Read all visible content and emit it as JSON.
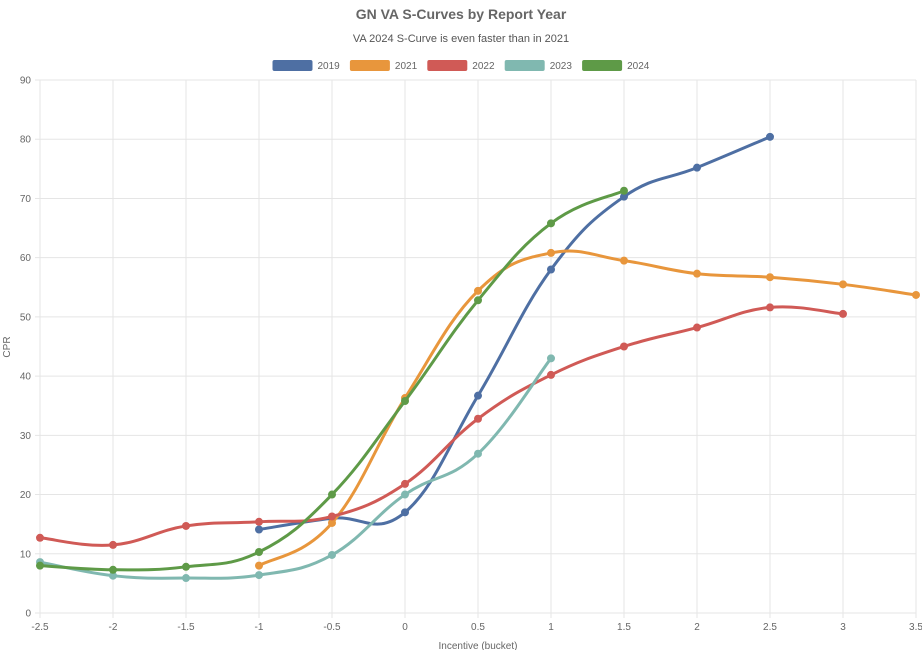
{
  "chart_data": {
    "type": "line",
    "title": "GN VA S-Curves by Report Year",
    "subtitle": "VA 2024 S-Curve is even faster than in 2021",
    "xlabel": "Incentive (bucket)",
    "ylabel": "CPR",
    "xlim": [
      -2.5,
      3.5
    ],
    "ylim": [
      0,
      90
    ],
    "x_ticks": [
      "-2.5",
      "-2",
      "-1.5",
      "-1",
      "-0.5",
      "0",
      "0.5",
      "1",
      "1.5",
      "2",
      "2.5",
      "3",
      "3.5"
    ],
    "y_ticks": [
      "0",
      "10",
      "20",
      "30",
      "40",
      "50",
      "60",
      "70",
      "80",
      "90"
    ],
    "grid": true,
    "legend_position": "top",
    "series": [
      {
        "name": "2019",
        "color": "#4e6fa3",
        "points": [
          [
            -1,
            14.1
          ],
          [
            -0.5,
            16.0
          ],
          [
            0,
            17.0
          ],
          [
            0.5,
            36.7
          ],
          [
            1,
            58.0
          ],
          [
            1.5,
            70.3
          ],
          [
            2,
            75.2
          ],
          [
            2.5,
            80.4
          ]
        ]
      },
      {
        "name": "2021",
        "color": "#e8963c",
        "points": [
          [
            -1,
            8.0
          ],
          [
            -0.5,
            15.2
          ],
          [
            0,
            36.3
          ],
          [
            0.5,
            54.4
          ],
          [
            1,
            60.8
          ],
          [
            1.5,
            59.5
          ],
          [
            2,
            57.3
          ],
          [
            2.5,
            56.7
          ],
          [
            3,
            55.5
          ],
          [
            3.5,
            53.7
          ]
        ]
      },
      {
        "name": "2022",
        "color": "#d05a56",
        "points": [
          [
            -2.5,
            12.7
          ],
          [
            -2,
            11.5
          ],
          [
            -1.5,
            14.7
          ],
          [
            -1,
            15.4
          ],
          [
            -0.5,
            16.3
          ],
          [
            0,
            21.8
          ],
          [
            0.5,
            32.8
          ],
          [
            1,
            40.2
          ],
          [
            1.5,
            45.0
          ],
          [
            2,
            48.2
          ],
          [
            2.5,
            51.6
          ],
          [
            3,
            50.5
          ]
        ]
      },
      {
        "name": "2023",
        "color": "#80b8b0",
        "points": [
          [
            -2.5,
            8.6
          ],
          [
            -2,
            6.3
          ],
          [
            -1.5,
            5.9
          ],
          [
            -1,
            6.4
          ],
          [
            -0.5,
            9.8
          ],
          [
            0,
            20.0
          ],
          [
            0.5,
            26.9
          ],
          [
            1,
            43.0
          ]
        ]
      },
      {
        "name": "2024",
        "color": "#5e9a47",
        "points": [
          [
            -2.5,
            8.0
          ],
          [
            -2,
            7.3
          ],
          [
            -1.5,
            7.8
          ],
          [
            -1,
            10.3
          ],
          [
            -0.5,
            20.0
          ],
          [
            0,
            35.8
          ],
          [
            0.5,
            52.8
          ],
          [
            1,
            65.8
          ],
          [
            1.5,
            71.3
          ]
        ]
      }
    ]
  }
}
